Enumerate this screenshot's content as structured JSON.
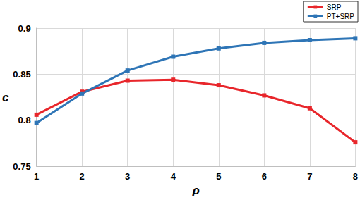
{
  "chart_data": {
    "type": "line",
    "x_label": "ρ",
    "y_label": "c",
    "x": [
      1,
      2,
      3,
      4,
      5,
      6,
      7,
      8
    ],
    "series": [
      {
        "name": "SRP",
        "color": "#e8262b",
        "marker": "square",
        "line_style": "solid",
        "values": [
          0.806,
          0.831,
          0.843,
          0.844,
          0.838,
          0.827,
          0.813,
          0.776
        ]
      },
      {
        "name": "PT+SRP",
        "color": "#2e75b6",
        "marker": "square",
        "line_style": "solid",
        "values": [
          0.797,
          0.829,
          0.854,
          0.869,
          0.878,
          0.884,
          0.887,
          0.889
        ]
      }
    ],
    "xlim": [
      1,
      8
    ],
    "xticks": [
      1,
      2,
      3,
      4,
      5,
      6,
      7,
      8
    ],
    "ylim": [
      0.75,
      0.9
    ],
    "yticks": [
      0.75,
      0.8,
      0.85,
      0.9
    ],
    "grid": true,
    "legend": "top-right"
  }
}
